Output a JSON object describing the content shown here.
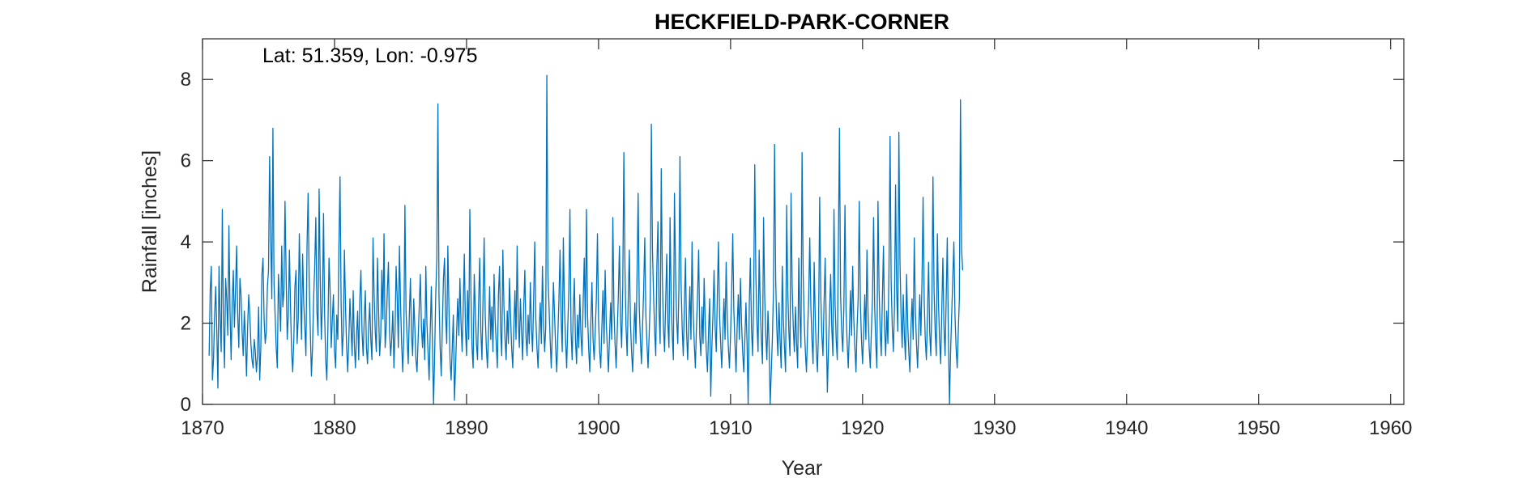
{
  "chart_data": {
    "type": "line",
    "title": "HECKFIELD-PARK-CORNER",
    "annotation": "Lat: 51.359, Lon: -0.975",
    "xlabel": "Year",
    "ylabel": "Rainfall [inches]",
    "xlim": [
      1870,
      1961
    ],
    "ylim": [
      0,
      9
    ],
    "xticks": [
      1870,
      1880,
      1890,
      1900,
      1910,
      1920,
      1930,
      1940,
      1950,
      1960
    ],
    "yticks": [
      0,
      2,
      4,
      6,
      8
    ],
    "grid": false,
    "line_color": "#0072BD",
    "series": [
      {
        "x_start": 1870.5,
        "step": 0.0833333,
        "values": [
          1.2,
          2.8,
          3.4,
          0.6,
          1.1,
          2.2,
          2.9,
          1.8,
          0.4,
          3.4,
          2.1,
          1.3,
          4.8,
          2.0,
          0.9,
          3.1,
          2.6,
          1.7,
          4.4,
          2.3,
          1.1,
          2.5,
          3.3,
          1.9,
          2.8,
          3.9,
          2.2,
          1.4,
          3.1,
          2.7,
          1.8,
          1.2,
          2.3,
          1.6,
          0.7,
          1.9,
          2.7,
          2.2,
          1.5,
          1.1,
          0.9,
          1.6,
          1.3,
          0.8,
          1.2,
          2.4,
          0.6,
          1.4,
          3.2,
          3.6,
          2.1,
          1.5,
          1.8,
          2.9,
          3.3,
          6.1,
          4.1,
          2.6,
          6.8,
          3.0,
          2.2,
          1.4,
          0.9,
          3.2,
          2.5,
          1.8,
          3.9,
          2.4,
          2.8,
          5.0,
          3.2,
          1.6,
          2.2,
          3.8,
          2.4,
          1.3,
          0.8,
          1.6,
          2.9,
          3.3,
          1.5,
          2.1,
          4.2,
          2.8,
          1.6,
          3.7,
          2.5,
          1.9,
          1.2,
          3.9,
          5.2,
          3.0,
          1.8,
          0.7,
          1.4,
          2.6,
          3.4,
          4.6,
          2.3,
          1.7,
          5.3,
          3.1,
          1.6,
          2.5,
          4.7,
          2.2,
          1.1,
          0.6,
          1.9,
          3.6,
          2.8,
          1.4,
          2.1,
          2.7,
          1.3,
          0.9,
          2.2,
          1.6,
          3.9,
          5.6,
          2.5,
          1.2,
          1.8,
          3.8,
          2.4,
          1.4,
          0.8,
          1.6,
          2.6,
          1.9,
          1.2,
          2.8,
          1.5,
          0.9,
          1.7,
          2.3,
          1.1,
          2.6,
          3.3,
          1.8,
          1.2,
          2.1,
          2.8,
          1.4,
          1.0,
          1.9,
          2.5,
          1.6,
          1.1,
          4.1,
          2.7,
          1.8,
          1.3,
          3.6,
          2.4,
          1.2,
          1.7,
          3.3,
          2.1,
          4.2,
          1.4,
          1.9,
          2.8,
          3.5,
          1.8,
          1.2,
          1.6,
          2.3,
          0.9,
          1.8,
          3.4,
          2.6,
          1.4,
          3.9,
          2.5,
          1.5,
          0.8,
          1.7,
          4.9,
          2.3,
          1.6,
          1.0,
          2.2,
          3.1,
          1.7,
          1.2,
          2.6,
          1.9,
          1.1,
          0.8,
          1.6,
          2.4,
          3.2,
          1.9,
          1.4,
          2.1,
          1.1,
          3.4,
          2.0,
          1.3,
          0.6,
          1.8,
          2.9,
          1.5,
          0.0,
          1.2,
          2.7,
          3.6,
          7.4,
          2.6,
          1.4,
          0.7,
          1.9,
          3.1,
          3.6,
          2.2,
          1.5,
          3.9,
          2.4,
          1.1,
          0.6,
          1.4,
          2.2,
          0.1,
          0.9,
          1.8,
          2.6,
          1.7,
          3.1,
          2.0,
          1.3,
          2.4,
          3.7,
          1.9,
          1.2,
          2.8,
          1.6,
          4.8,
          2.7,
          1.4,
          0.9,
          3.2,
          2.3,
          1.5,
          1.1,
          2.5,
          3.6,
          1.8,
          1.1,
          2.6,
          4.1,
          2.2,
          1.4,
          0.9,
          1.8,
          2.9,
          1.6,
          2.4,
          1.3,
          3.2,
          2.1,
          1.5,
          0.9,
          2.7,
          3.4,
          1.8,
          1.2,
          3.8,
          2.4,
          1.6,
          1.1,
          2.3,
          1.5,
          3.1,
          2.2,
          1.4,
          0.9,
          1.9,
          2.8,
          1.6,
          3.9,
          2.1,
          1.4,
          2.6,
          1.8,
          1.1,
          2.4,
          3.3,
          1.7,
          1.2,
          2.2,
          1.5,
          3.0,
          1.9,
          1.3,
          2.6,
          4.0,
          2.1,
          1.4,
          0.9,
          1.8,
          2.5,
          1.5,
          3.4,
          2.0,
          1.3,
          1.9,
          8.1,
          3.2,
          2.4,
          1.6,
          0.9,
          1.8,
          3.0,
          2.2,
          1.4,
          0.8,
          1.7,
          2.6,
          3.8,
          2.1,
          1.3,
          4.1,
          2.4,
          1.6,
          0.9,
          1.9,
          2.8,
          4.8,
          1.8,
          1.1,
          2.3,
          3.1,
          1.6,
          1.0,
          2.2,
          1.4,
          2.7,
          1.7,
          1.2,
          2.5,
          3.6,
          1.9,
          4.8,
          2.2,
          1.4,
          0.8,
          2.0,
          3.0,
          1.6,
          1.1,
          1.8,
          2.6,
          4.2,
          2.1,
          1.3,
          0.9,
          1.9,
          2.8,
          1.5,
          3.3,
          2.0,
          1.4,
          0.8,
          1.7,
          2.5,
          1.6,
          4.6,
          2.3,
          1.5,
          0.9,
          1.8,
          2.7,
          3.9,
          2.1,
          1.4,
          2.9,
          6.2,
          3.4,
          1.9,
          1.2,
          2.6,
          3.8,
          2.0,
          1.3,
          0.8,
          1.7,
          2.5,
          1.5,
          3.2,
          5.2,
          2.4,
          1.6,
          1.0,
          1.9,
          2.8,
          4.1,
          2.2,
          1.5,
          0.9,
          1.7,
          2.6,
          6.9,
          3.8,
          2.7,
          1.8,
          1.2,
          3.4,
          4.5,
          2.3,
          1.5,
          5.8,
          3.1,
          1.9,
          1.3,
          2.5,
          3.7,
          2.0,
          1.4,
          4.6,
          2.6,
          1.7,
          1.1,
          5.2,
          3.3,
          2.1,
          1.5,
          2.8,
          6.1,
          3.0,
          1.9,
          1.2,
          2.4,
          3.6,
          1.8,
          1.1,
          2.0,
          2.9,
          1.6,
          4.0,
          2.3,
          1.5,
          0.9,
          1.9,
          2.7,
          3.8,
          1.7,
          1.2,
          2.4,
          1.5,
          3.1,
          2.0,
          1.3,
          0.8,
          1.8,
          2.6,
          0.2,
          1.4,
          2.2,
          3.3,
          1.9,
          1.3,
          2.7,
          4.0,
          2.2,
          1.5,
          0.9,
          1.8,
          2.6,
          1.6,
          3.5,
          2.1,
          1.4,
          0.9,
          1.7,
          2.8,
          4.2,
          2.3,
          1.5,
          0.8,
          1.9,
          2.7,
          1.6,
          3.1,
          2.0,
          1.3,
          0.8,
          1.6,
          2.5,
          1.5,
          0.0,
          2.4,
          3.6,
          1.9,
          1.2,
          2.6,
          5.9,
          3.2,
          2.0,
          1.3,
          3.8,
          2.4,
          1.6,
          1.0,
          4.6,
          2.7,
          1.7,
          1.1,
          2.3,
          1.5,
          0.0,
          0.8,
          1.6,
          2.8,
          6.4,
          3.1,
          1.9,
          1.2,
          2.5,
          1.6,
          0.9,
          3.4,
          2.1,
          1.4,
          0.8,
          4.9,
          2.8,
          1.8,
          1.2,
          5.2,
          2.9,
          1.9,
          1.3,
          2.4,
          1.5,
          0.9,
          3.6,
          2.2,
          1.4,
          6.2,
          3.2,
          2.0,
          1.3,
          0.8,
          1.8,
          2.6,
          4.1,
          2.4,
          1.6,
          1.0,
          3.5,
          2.1,
          1.3,
          0.8,
          1.9,
          5.1,
          2.7,
          1.7,
          1.2,
          2.5,
          3.6,
          1.9,
          0.3,
          1.4,
          2.3,
          3.2,
          1.9,
          1.2,
          4.8,
          2.5,
          1.6,
          1.1,
          3.9,
          6.8,
          2.7,
          1.8,
          1.3,
          2.4,
          4.9,
          2.3,
          1.5,
          0.9,
          1.8,
          2.8,
          1.7,
          3.4,
          2.1,
          1.4,
          0.8,
          1.9,
          2.6,
          5.0,
          2.5,
          1.6,
          1.0,
          1.8,
          2.7,
          1.6,
          3.8,
          2.2,
          1.4,
          0.9,
          1.8,
          2.6,
          4.6,
          2.4,
          1.5,
          0.9,
          5.0,
          2.8,
          1.8,
          1.2,
          2.6,
          3.9,
          1.9,
          1.2,
          2.3,
          1.5,
          3.3,
          6.6,
          3.0,
          1.9,
          1.3,
          2.4,
          5.4,
          2.8,
          1.8,
          6.7,
          3.5,
          2.2,
          1.4,
          2.7,
          1.7,
          1.1,
          3.2,
          2.0,
          1.3,
          0.8,
          1.9,
          2.6,
          1.6,
          4.1,
          2.3,
          1.5,
          0.9,
          1.8,
          2.7,
          1.7,
          3.0,
          5.1,
          2.6,
          1.6,
          1.1,
          2.2,
          3.5,
          1.8,
          1.2,
          2.5,
          5.6,
          2.8,
          1.8,
          1.2,
          4.2,
          2.5,
          1.6,
          1.0,
          2.3,
          3.6,
          1.9,
          1.2,
          2.6,
          4.1,
          1.7,
          0.0,
          1.3,
          2.2,
          3.1,
          4.0,
          2.2,
          1.4,
          0.9,
          1.8,
          2.6,
          7.5,
          3.8,
          3.3
        ]
      }
    ]
  }
}
